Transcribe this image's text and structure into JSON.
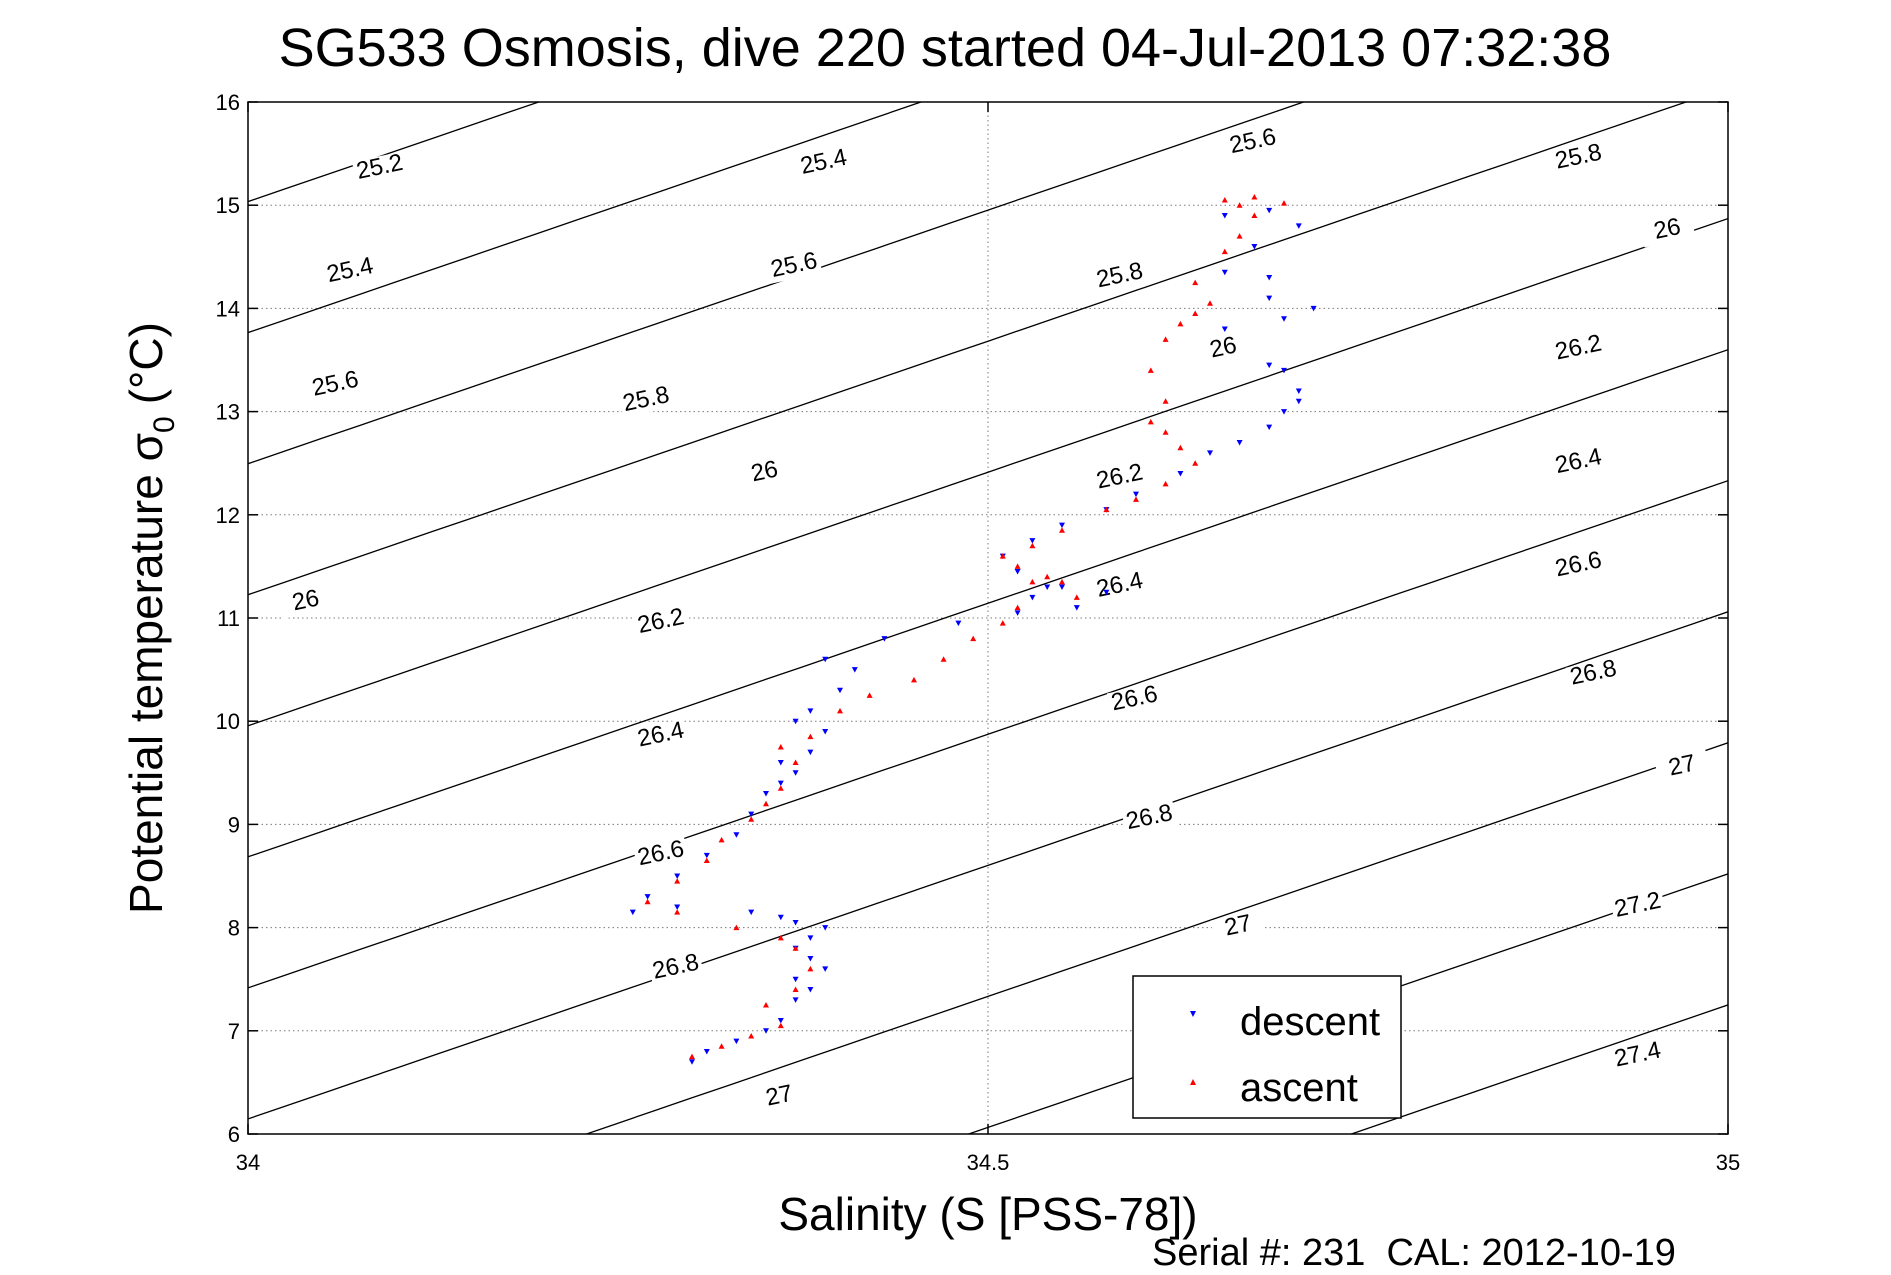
{
  "colors": {
    "descent": "#0000ff",
    "ascent": "#ff0000",
    "contour": "#000000",
    "grid": "#7a7a7a"
  },
  "footer": {
    "serial": "Serial #: 231  CAL: 2012-10-19"
  },
  "chart_data": {
    "type": "scatter",
    "title": "SG533 Osmosis, dive 220 started 04-Jul-2013 07:32:38",
    "xlabel": "Salinity (S [PSS-78])",
    "ylabel_main": "Potential temperature σ",
    "ylabel_sub": "0",
    "ylabel_unit": "(°C)",
    "xlim": [
      34,
      35
    ],
    "ylim": [
      6,
      16
    ],
    "xticks": [
      34,
      34.5,
      35
    ],
    "xtick_labels": [
      "34",
      "34.5",
      "35"
    ],
    "yticks": [
      6,
      7,
      8,
      9,
      10,
      11,
      12,
      13,
      14,
      15,
      16
    ],
    "ytick_labels": [
      "6",
      "7",
      "8",
      "9",
      "10",
      "11",
      "12",
      "13",
      "14",
      "15",
      "16"
    ],
    "grid": true,
    "legend": {
      "placement": "bottom-right",
      "entries": [
        "descent",
        "ascent"
      ]
    },
    "isopycnals": [
      25.2,
      25.4,
      25.6,
      25.8,
      26,
      26.2,
      26.4,
      26.6,
      26.8,
      27,
      27.2,
      27.4
    ],
    "contour_labels": [
      {
        "text": "25.2",
        "s": 34.09,
        "t": 15.3,
        "angle": -12
      },
      {
        "text": "25.4",
        "s": 34.07,
        "t": 14.3,
        "angle": -12
      },
      {
        "text": "25.6",
        "s": 34.06,
        "t": 13.2,
        "angle": -12
      },
      {
        "text": "26",
        "s": 34.04,
        "t": 11.1,
        "angle": -12
      },
      {
        "text": "25.4",
        "s": 34.39,
        "t": 15.35,
        "angle": -12
      },
      {
        "text": "25.6",
        "s": 34.37,
        "t": 14.35,
        "angle": -12
      },
      {
        "text": "25.8",
        "s": 34.27,
        "t": 13.05,
        "angle": -12
      },
      {
        "text": "26",
        "s": 34.35,
        "t": 12.35,
        "angle": -12
      },
      {
        "text": "26.2",
        "s": 34.28,
        "t": 10.9,
        "angle": -12
      },
      {
        "text": "26.4",
        "s": 34.28,
        "t": 9.8,
        "angle": -12
      },
      {
        "text": "26.6",
        "s": 34.28,
        "t": 8.65,
        "angle": -12
      },
      {
        "text": "26.8",
        "s": 34.29,
        "t": 7.55,
        "angle": -12
      },
      {
        "text": "27",
        "s": 34.36,
        "t": 6.3,
        "angle": -12
      },
      {
        "text": "25.6",
        "s": 34.68,
        "t": 15.55,
        "angle": -12
      },
      {
        "text": "25.8",
        "s": 34.59,
        "t": 14.25,
        "angle": -12
      },
      {
        "text": "26",
        "s": 34.66,
        "t": 13.55,
        "angle": -12
      },
      {
        "text": "26.2",
        "s": 34.59,
        "t": 12.3,
        "angle": -12
      },
      {
        "text": "26.4",
        "s": 34.59,
        "t": 11.25,
        "angle": -12
      },
      {
        "text": "26.6",
        "s": 34.6,
        "t": 10.15,
        "angle": -12
      },
      {
        "text": "26.8",
        "s": 34.61,
        "t": 9.0,
        "angle": -12
      },
      {
        "text": "27",
        "s": 34.67,
        "t": 7.95,
        "angle": -12
      },
      {
        "text": "25.8",
        "s": 34.9,
        "t": 15.4,
        "angle": -12
      },
      {
        "text": "26",
        "s": 34.96,
        "t": 14.7,
        "angle": -12
      },
      {
        "text": "26.2",
        "s": 34.9,
        "t": 13.55,
        "angle": -12
      },
      {
        "text": "26.4",
        "s": 34.9,
        "t": 12.45,
        "angle": -12
      },
      {
        "text": "26.6",
        "s": 34.9,
        "t": 11.45,
        "angle": -12
      },
      {
        "text": "26.8",
        "s": 34.91,
        "t": 10.4,
        "angle": -12
      },
      {
        "text": "27",
        "s": 34.97,
        "t": 9.5,
        "angle": -12
      },
      {
        "text": "27.2",
        "s": 34.94,
        "t": 8.15,
        "angle": -12
      },
      {
        "text": "27.4",
        "s": 34.94,
        "t": 6.7,
        "angle": -12
      }
    ],
    "series": [
      {
        "name": "descent",
        "marker": "triangle-down",
        "x": [
          34.3,
          34.31,
          34.33,
          34.35,
          34.36,
          34.37,
          34.38,
          34.37,
          34.39,
          34.38,
          34.37,
          34.38,
          34.39,
          34.37,
          34.36,
          34.34,
          34.29,
          34.26,
          34.27,
          34.29,
          34.31,
          34.33,
          34.34,
          34.35,
          34.36,
          34.37,
          34.38,
          34.36,
          34.39,
          34.37,
          34.38,
          34.4,
          34.41,
          34.39,
          34.43,
          34.48,
          34.52,
          34.53,
          34.55,
          34.58,
          34.56,
          34.54,
          34.52,
          34.51,
          34.53,
          34.55,
          34.58,
          34.6,
          34.63,
          34.65,
          34.67,
          34.69,
          34.7,
          34.71,
          34.69,
          34.66,
          34.7,
          34.72,
          34.69,
          34.66,
          34.69,
          34.71,
          34.68,
          34.66,
          34.69,
          34.71,
          34.7
        ],
        "y": [
          6.7,
          6.8,
          6.9,
          7.0,
          7.1,
          7.3,
          7.4,
          7.5,
          7.6,
          7.7,
          7.8,
          7.9,
          8.0,
          8.05,
          8.1,
          8.15,
          8.2,
          8.15,
          8.3,
          8.5,
          8.7,
          8.9,
          9.1,
          9.3,
          9.4,
          9.5,
          9.7,
          9.6,
          9.9,
          10.0,
          10.1,
          10.3,
          10.5,
          10.6,
          10.8,
          10.95,
          11.05,
          11.2,
          11.3,
          11.25,
          11.1,
          11.3,
          11.45,
          11.6,
          11.75,
          11.9,
          12.05,
          12.2,
          12.4,
          12.6,
          12.7,
          12.85,
          13.0,
          13.2,
          13.45,
          13.8,
          13.9,
          14.0,
          14.1,
          14.9,
          14.95,
          14.8,
          14.6,
          14.35,
          14.3,
          13.1,
          13.4
        ]
      },
      {
        "name": "ascent",
        "marker": "triangle-up",
        "x": [
          34.3,
          34.32,
          34.34,
          34.36,
          34.35,
          34.37,
          34.38,
          34.37,
          34.36,
          34.33,
          34.29,
          34.27,
          34.29,
          34.31,
          34.32,
          34.34,
          34.35,
          34.36,
          34.37,
          34.36,
          34.38,
          34.4,
          34.42,
          34.45,
          34.47,
          34.49,
          34.51,
          34.52,
          34.53,
          34.52,
          34.51,
          34.53,
          34.55,
          34.58,
          34.6,
          34.62,
          34.64,
          34.63,
          34.62,
          34.61,
          34.62,
          34.61,
          34.62,
          34.63,
          34.64,
          34.65,
          34.64,
          34.66,
          34.67,
          34.68,
          34.67,
          34.66,
          34.68,
          34.7,
          34.54,
          34.55,
          34.56
        ],
        "y": [
          6.75,
          6.85,
          6.95,
          7.05,
          7.25,
          7.4,
          7.6,
          7.8,
          7.9,
          8.0,
          8.15,
          8.25,
          8.45,
          8.65,
          8.85,
          9.05,
          9.2,
          9.35,
          9.6,
          9.75,
          9.85,
          10.1,
          10.25,
          10.4,
          10.6,
          10.8,
          10.95,
          11.1,
          11.35,
          11.5,
          11.6,
          11.7,
          11.85,
          12.05,
          12.15,
          12.3,
          12.5,
          12.65,
          12.8,
          12.9,
          13.1,
          13.4,
          13.7,
          13.85,
          13.95,
          14.05,
          14.25,
          14.55,
          14.7,
          14.9,
          15.0,
          15.05,
          15.08,
          15.02,
          11.4,
          11.35,
          11.2
        ]
      }
    ]
  }
}
